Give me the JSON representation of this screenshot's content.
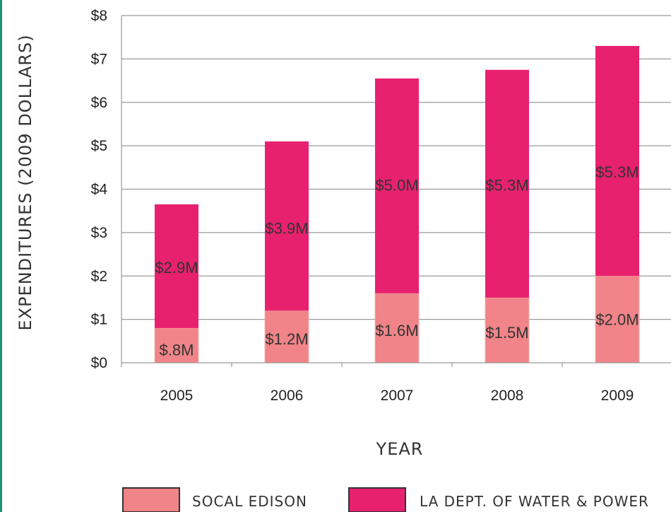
{
  "chart_data": {
    "type": "bar",
    "stacked": true,
    "categories": [
      "2005",
      "2006",
      "2007",
      "2008",
      "2009"
    ],
    "series": [
      {
        "name": "SOCAL EDISON",
        "values": [
          0.8,
          1.2,
          1.6,
          1.5,
          2.0
        ],
        "labels": [
          "$.8M",
          "$1.2M",
          "$1.6M",
          "$1.5M",
          "$2.0M"
        ],
        "color": "#f08488"
      },
      {
        "name": "LA DEPT. OF WATER & POWER",
        "values": [
          2.85,
          3.9,
          4.95,
          5.25,
          5.3
        ],
        "labels": [
          "$2.9M",
          "$3.9M",
          "$5.0M",
          "$5.3M",
          "$5.3M"
        ],
        "color": "#e8216e"
      }
    ],
    "xlabel": "YEAR",
    "ylabel": "EXPENDITURES (2009 DOLLARS)",
    "ylim": [
      0,
      8
    ],
    "yticks": [
      {
        "value": 0,
        "label": "$0"
      },
      {
        "value": 1,
        "label": "$1"
      },
      {
        "value": 2,
        "label": "$2"
      },
      {
        "value": 3,
        "label": "$3"
      },
      {
        "value": 4,
        "label": "$4"
      },
      {
        "value": 5,
        "label": "$5"
      },
      {
        "value": 6,
        "label": "$6"
      },
      {
        "value": 7,
        "label": "$7"
      },
      {
        "value": 8,
        "label": "$8"
      }
    ],
    "grid": true,
    "legend_position": "bottom"
  }
}
